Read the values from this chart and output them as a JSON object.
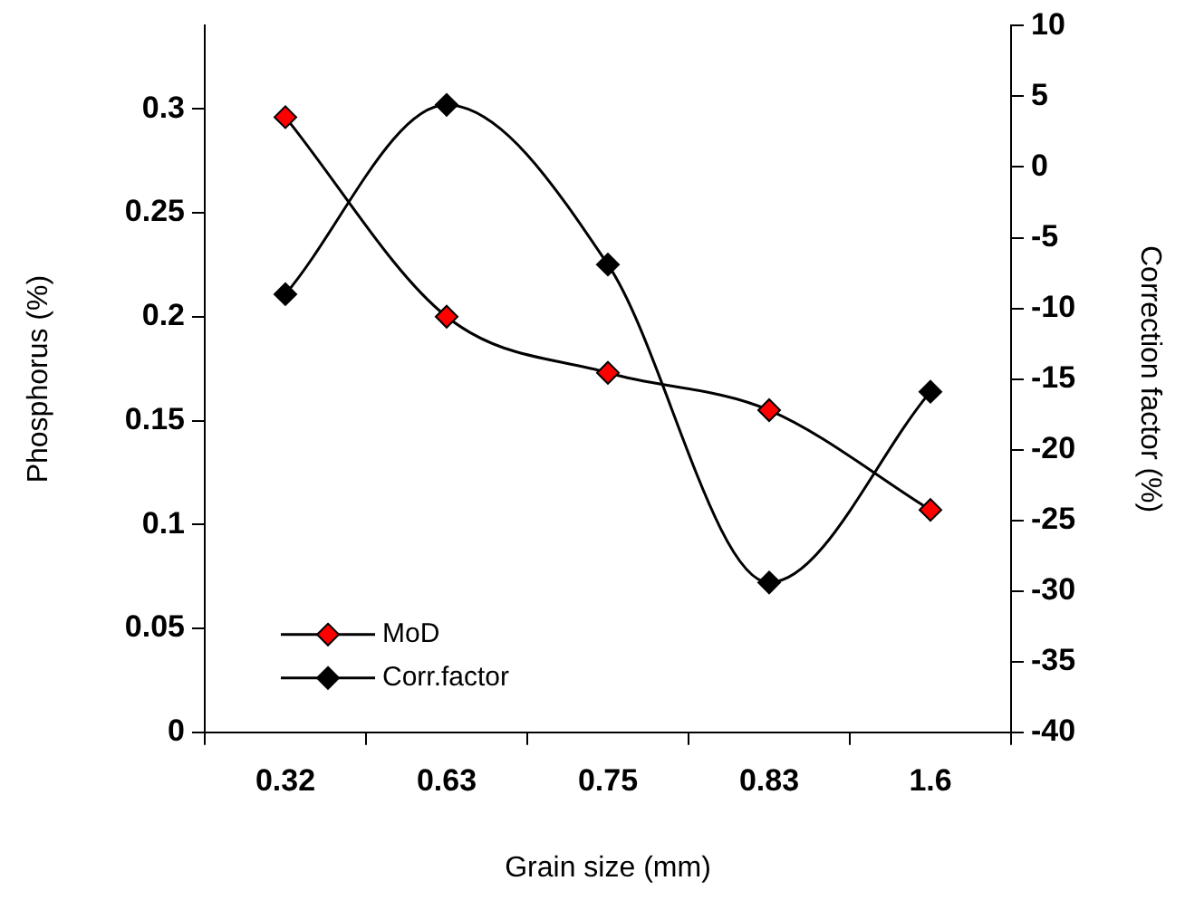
{
  "chart_data": {
    "type": "line",
    "xlabel": "Grain size (mm)",
    "ylabel": "Phosphorus (%)",
    "y2label": "Correction factor (%)",
    "categories": [
      "0.32",
      "0.63",
      "0.75",
      "0.83",
      "1.6"
    ],
    "series": [
      {
        "name": "MoD",
        "color": "#ff0000",
        "values": [
          0.296,
          0.2,
          0.173,
          0.155,
          0.107
        ]
      },
      {
        "name": "Corr.factor",
        "color": "#000000",
        "axis": "y2",
        "values": [
          -9.0,
          4.4,
          -6.9,
          -29.4,
          -15.9
        ]
      }
    ],
    "ylim": [
      0,
      0.34
    ],
    "yticks": [
      0,
      0.05,
      0.1,
      0.15,
      0.2,
      0.25,
      0.3
    ],
    "y2lim": [
      -40,
      10
    ],
    "y2ticks": [
      -40,
      -35,
      -30,
      -25,
      -20,
      -15,
      -10,
      -5,
      0,
      5,
      10
    ],
    "grid": false,
    "legend": "bottom left",
    "marker": "diamond",
    "line_style": "solid"
  }
}
